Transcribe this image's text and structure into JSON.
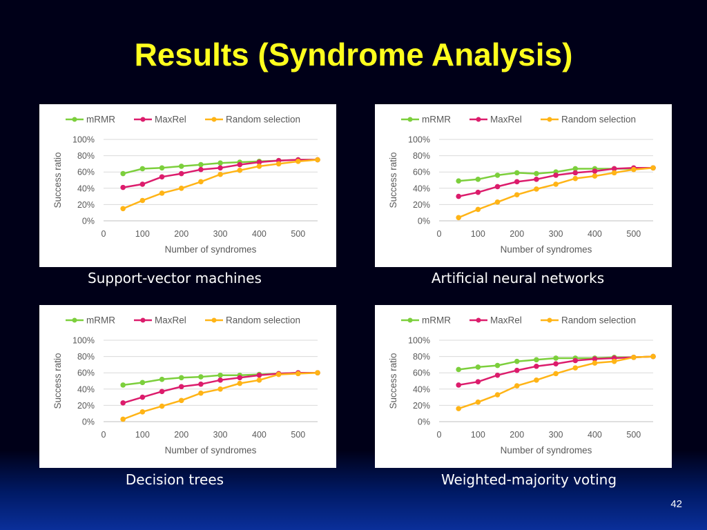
{
  "slide": {
    "title": "Results (Syndrome Analysis)",
    "page_number": "42"
  },
  "colors": {
    "mRMR": "#7ccf3c",
    "MaxRel": "#dc1c6c",
    "Random selection": "#ffb416"
  },
  "chart_data": [
    {
      "type": "line",
      "caption": "Support-vector machines",
      "xlabel": "Number of syndromes",
      "ylabel": "Success ratio",
      "xlim": [
        0,
        550
      ],
      "ylim": [
        0,
        100
      ],
      "x_ticks": [
        "0",
        "100",
        "200",
        "300",
        "400",
        "500"
      ],
      "y_ticks": [
        "0%",
        "20%",
        "40%",
        "60%",
        "80%",
        "100%"
      ],
      "legend_position": "top",
      "grid": true,
      "x": [
        50,
        100,
        150,
        200,
        250,
        300,
        350,
        400,
        450,
        500,
        550
      ],
      "series": [
        {
          "name": "mRMR",
          "values": [
            58,
            64,
            65,
            67,
            69,
            71,
            72,
            73,
            74,
            75,
            75
          ]
        },
        {
          "name": "MaxRel",
          "values": [
            41,
            45,
            54,
            58,
            63,
            65,
            69,
            72,
            74,
            75,
            75
          ]
        },
        {
          "name": "Random selection",
          "values": [
            15,
            25,
            34,
            40,
            48,
            57,
            62,
            67,
            70,
            73,
            75
          ]
        }
      ]
    },
    {
      "type": "line",
      "caption": "Artificial neural networks",
      "xlabel": "Number of syndromes",
      "ylabel": "Success ratio",
      "xlim": [
        0,
        550
      ],
      "ylim": [
        0,
        100
      ],
      "x_ticks": [
        "0",
        "100",
        "200",
        "300",
        "400",
        "500"
      ],
      "y_ticks": [
        "0%",
        "20%",
        "40%",
        "60%",
        "80%",
        "100%"
      ],
      "legend_position": "top",
      "grid": true,
      "x": [
        50,
        100,
        150,
        200,
        250,
        300,
        350,
        400,
        450,
        500,
        550
      ],
      "series": [
        {
          "name": "mRMR",
          "values": [
            49,
            51,
            56,
            59,
            58,
            60,
            64,
            64,
            64,
            64,
            65
          ]
        },
        {
          "name": "MaxRel",
          "values": [
            30,
            35,
            42,
            48,
            51,
            56,
            59,
            61,
            64,
            65,
            65
          ]
        },
        {
          "name": "Random selection",
          "values": [
            4,
            14,
            23,
            32,
            39,
            45,
            52,
            55,
            59,
            63,
            65
          ]
        }
      ]
    },
    {
      "type": "line",
      "caption": "Decision trees",
      "xlabel": "Number of syndromes",
      "ylabel": "Success ratio",
      "xlim": [
        0,
        550
      ],
      "ylim": [
        0,
        100
      ],
      "x_ticks": [
        "0",
        "100",
        "200",
        "300",
        "400",
        "500"
      ],
      "y_ticks": [
        "0%",
        "20%",
        "40%",
        "60%",
        "80%",
        "100%"
      ],
      "legend_position": "top",
      "grid": true,
      "x": [
        50,
        100,
        150,
        200,
        250,
        300,
        350,
        400,
        450,
        500,
        550
      ],
      "series": [
        {
          "name": "mRMR",
          "values": [
            45,
            48,
            52,
            54,
            55,
            57,
            57,
            58,
            59,
            60,
            60
          ]
        },
        {
          "name": "MaxRel",
          "values": [
            23,
            30,
            37,
            43,
            46,
            51,
            54,
            57,
            59,
            60,
            60
          ]
        },
        {
          "name": "Random selection",
          "values": [
            3,
            12,
            19,
            26,
            35,
            40,
            47,
            51,
            58,
            59,
            60
          ]
        }
      ]
    },
    {
      "type": "line",
      "caption": "Weighted-majority voting",
      "xlabel": "Number of syndromes",
      "ylabel": "Success ratio",
      "xlim": [
        0,
        550
      ],
      "ylim": [
        0,
        100
      ],
      "x_ticks": [
        "0",
        "100",
        "200",
        "300",
        "400",
        "500"
      ],
      "y_ticks": [
        "0%",
        "20%",
        "40%",
        "60%",
        "80%",
        "100%"
      ],
      "legend_position": "top",
      "grid": true,
      "x": [
        50,
        100,
        150,
        200,
        250,
        300,
        350,
        400,
        450,
        500,
        550
      ],
      "series": [
        {
          "name": "mRMR",
          "values": [
            64,
            67,
            69,
            74,
            76,
            78,
            78,
            78,
            79,
            79,
            80
          ]
        },
        {
          "name": "MaxRel",
          "values": [
            45,
            49,
            57,
            63,
            68,
            71,
            75,
            77,
            78,
            79,
            80
          ]
        },
        {
          "name": "Random selection",
          "values": [
            16,
            24,
            33,
            44,
            51,
            59,
            66,
            72,
            74,
            79,
            80
          ]
        }
      ]
    }
  ]
}
